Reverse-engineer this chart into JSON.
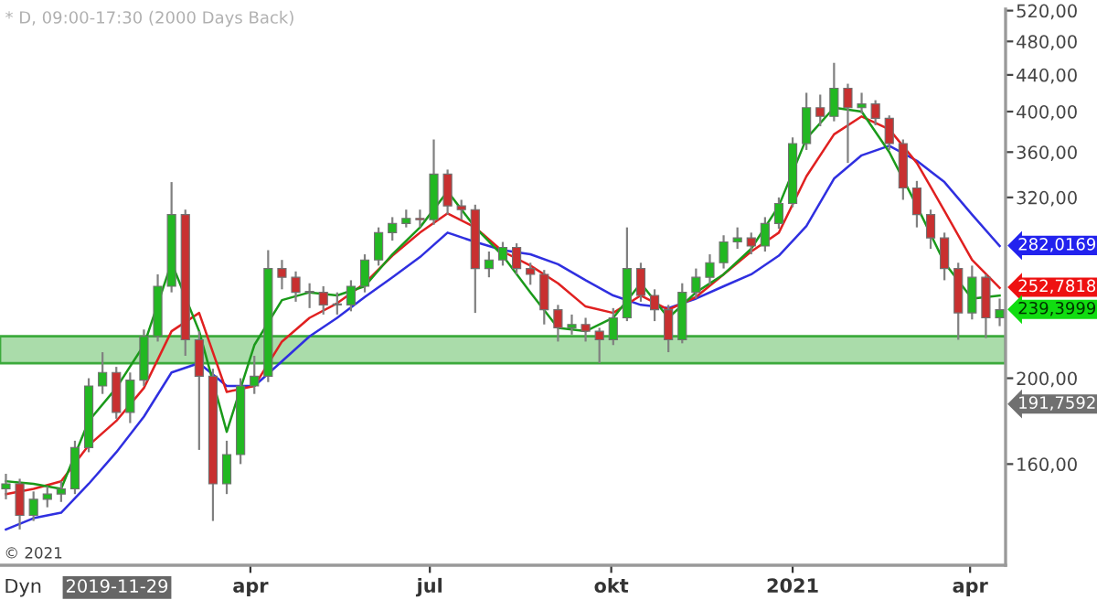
{
  "chart_data": {
    "type": "candlestick",
    "title": "* D, 09:00-17:30 (2000 Days Back)",
    "x": [
      "2019-11-29",
      "2019-12-06",
      "2019-12-13",
      "2019-12-20",
      "2019-12-27",
      "2020-01-03",
      "2020-01-10",
      "2020-01-17",
      "2020-01-24",
      "2020-01-31",
      "2020-02-07",
      "2020-02-14",
      "2020-02-21",
      "2020-02-28",
      "2020-03-06",
      "2020-03-13",
      "2020-03-20",
      "2020-03-27",
      "2020-04-03",
      "2020-04-10",
      "2020-04-17",
      "2020-04-24",
      "2020-05-01",
      "2020-05-08",
      "2020-05-15",
      "2020-05-22",
      "2020-05-29",
      "2020-06-05",
      "2020-06-12",
      "2020-06-19",
      "2020-06-26",
      "2020-07-03",
      "2020-07-10",
      "2020-07-17",
      "2020-07-24",
      "2020-07-31",
      "2020-08-07",
      "2020-08-14",
      "2020-08-21",
      "2020-08-28",
      "2020-09-04",
      "2020-09-11",
      "2020-09-18",
      "2020-09-25",
      "2020-10-02",
      "2020-10-09",
      "2020-10-16",
      "2020-10-23",
      "2020-10-30",
      "2020-11-06",
      "2020-11-13",
      "2020-11-20",
      "2020-11-27",
      "2020-12-04",
      "2020-12-11",
      "2020-12-18",
      "2020-12-25",
      "2021-01-01",
      "2021-01-08",
      "2021-01-15",
      "2021-01-22",
      "2021-01-29",
      "2021-02-05",
      "2021-02-12",
      "2021-02-19",
      "2021-02-26",
      "2021-03-05",
      "2021-03-12",
      "2021-03-19",
      "2021-03-26",
      "2021-04-02",
      "2021-04-09",
      "2021-04-16"
    ],
    "ohlc": [
      [
        150,
        156,
        146,
        152
      ],
      [
        152,
        154,
        135,
        140
      ],
      [
        140,
        149,
        138,
        146
      ],
      [
        146,
        151,
        143,
        148
      ],
      [
        148,
        153,
        145,
        150
      ],
      [
        150,
        170,
        148,
        167
      ],
      [
        167,
        200,
        165,
        196
      ],
      [
        196,
        214,
        192,
        203
      ],
      [
        203,
        206,
        180,
        183
      ],
      [
        183,
        203,
        178,
        199
      ],
      [
        199,
        227,
        196,
        223
      ],
      [
        223,
        262,
        220,
        254
      ],
      [
        254,
        333,
        250,
        306
      ],
      [
        306,
        310,
        212,
        221
      ],
      [
        221,
        226,
        166,
        201
      ],
      [
        201,
        205,
        138,
        152
      ],
      [
        152,
        170,
        148,
        164
      ],
      [
        164,
        200,
        160,
        196
      ],
      [
        196,
        212,
        192,
        201
      ],
      [
        201,
        279,
        198,
        266
      ],
      [
        266,
        272,
        252,
        260
      ],
      [
        260,
        264,
        244,
        250
      ],
      [
        250,
        256,
        240,
        250
      ],
      [
        250,
        254,
        236,
        242
      ],
      [
        242,
        250,
        236,
        242
      ],
      [
        242,
        258,
        238,
        254
      ],
      [
        254,
        276,
        250,
        272
      ],
      [
        272,
        296,
        268,
        292
      ],
      [
        292,
        304,
        286,
        299
      ],
      [
        299,
        310,
        296,
        303
      ],
      [
        303,
        310,
        296,
        302
      ],
      [
        302,
        372,
        298,
        340
      ],
      [
        340,
        344,
        306,
        313
      ],
      [
        313,
        318,
        302,
        310
      ],
      [
        310,
        314,
        237,
        266
      ],
      [
        266,
        278,
        260,
        272
      ],
      [
        272,
        285,
        268,
        281
      ],
      [
        281,
        284,
        262,
        266
      ],
      [
        266,
        270,
        255,
        262
      ],
      [
        262,
        265,
        230,
        239
      ],
      [
        239,
        242,
        220,
        228
      ],
      [
        228,
        236,
        224,
        230
      ],
      [
        230,
        234,
        220,
        226
      ],
      [
        226,
        228,
        208,
        221
      ],
      [
        221,
        240,
        218,
        234
      ],
      [
        234,
        296,
        232,
        266
      ],
      [
        266,
        270,
        244,
        248
      ],
      [
        248,
        252,
        232,
        239
      ],
      [
        239,
        242,
        214,
        221
      ],
      [
        221,
        256,
        219,
        250
      ],
      [
        250,
        266,
        246,
        260
      ],
      [
        260,
        276,
        255,
        270
      ],
      [
        270,
        290,
        266,
        285
      ],
      [
        285,
        296,
        280,
        288
      ],
      [
        288,
        292,
        276,
        282
      ],
      [
        282,
        304,
        278,
        299
      ],
      [
        299,
        320,
        295,
        315
      ],
      [
        315,
        374,
        312,
        368
      ],
      [
        368,
        420,
        362,
        404
      ],
      [
        404,
        418,
        385,
        395
      ],
      [
        395,
        454,
        390,
        425
      ],
      [
        425,
        430,
        350,
        404
      ],
      [
        404,
        420,
        398,
        408
      ],
      [
        408,
        412,
        386,
        393
      ],
      [
        393,
        396,
        362,
        368
      ],
      [
        368,
        372,
        318,
        328
      ],
      [
        328,
        334,
        296,
        306
      ],
      [
        306,
        310,
        280,
        288
      ],
      [
        288,
        292,
        258,
        266
      ],
      [
        266,
        270,
        221,
        237
      ],
      [
        237,
        268,
        233,
        260
      ],
      [
        260,
        262,
        222,
        234
      ],
      [
        234,
        246,
        229,
        239
      ]
    ],
    "series": [
      {
        "type": "line",
        "color": "#2f2fe0",
        "x": [
          "2019-11-29",
          "2019-12-13",
          "2019-12-27",
          "2020-01-10",
          "2020-01-24",
          "2020-02-07",
          "2020-02-21",
          "2020-03-06",
          "2020-03-20",
          "2020-04-03",
          "2020-04-17",
          "2020-05-01",
          "2020-05-15",
          "2020-05-29",
          "2020-06-12",
          "2020-06-26",
          "2020-07-10",
          "2020-07-24",
          "2020-08-07",
          "2020-08-21",
          "2020-09-04",
          "2020-09-18",
          "2020-10-02",
          "2020-10-16",
          "2020-10-30",
          "2020-11-13",
          "2020-11-27",
          "2020-12-11",
          "2020-12-25",
          "2021-01-08",
          "2021-01-22",
          "2021-02-05",
          "2021-02-19",
          "2021-03-05",
          "2021-03-19",
          "2021-04-02",
          "2021-04-16"
        ],
        "values": [
          135,
          139,
          141,
          152,
          165,
          181,
          203,
          208,
          196,
          196,
          209,
          223,
          234,
          247,
          260,
          274,
          292,
          285,
          279,
          276,
          269,
          258,
          248,
          242,
          240,
          246,
          254,
          262,
          275,
          297,
          336,
          357,
          366,
          352,
          333,
          306,
          282
        ]
      },
      {
        "type": "line",
        "color": "#e02020",
        "x": [
          "2019-11-29",
          "2019-12-13",
          "2019-12-27",
          "2020-01-10",
          "2020-01-24",
          "2020-02-07",
          "2020-02-21",
          "2020-03-06",
          "2020-03-20",
          "2020-04-03",
          "2020-04-17",
          "2020-05-01",
          "2020-05-15",
          "2020-05-29",
          "2020-06-12",
          "2020-06-26",
          "2020-07-10",
          "2020-07-24",
          "2020-08-07",
          "2020-08-21",
          "2020-09-04",
          "2020-09-18",
          "2020-10-02",
          "2020-10-16",
          "2020-10-30",
          "2020-11-13",
          "2020-11-27",
          "2020-12-11",
          "2020-12-25",
          "2021-01-08",
          "2021-01-22",
          "2021-02-05",
          "2021-02-19",
          "2021-03-05",
          "2021-03-19",
          "2021-04-02",
          "2021-04-16"
        ],
        "values": [
          148,
          150,
          153,
          168,
          179,
          195,
          226,
          237,
          193,
          196,
          220,
          234,
          243,
          256,
          275,
          292,
          307,
          296,
          278,
          268,
          256,
          241,
          237,
          248,
          239,
          247,
          262,
          278,
          292,
          338,
          377,
          395,
          382,
          350,
          309,
          272,
          253
        ]
      },
      {
        "type": "line",
        "color": "#1a9a1a",
        "x": [
          "2019-11-29",
          "2019-12-13",
          "2019-12-27",
          "2020-01-10",
          "2020-01-24",
          "2020-02-07",
          "2020-02-21",
          "2020-03-06",
          "2020-03-20",
          "2020-04-03",
          "2020-04-17",
          "2020-05-01",
          "2020-05-15",
          "2020-05-29",
          "2020-06-12",
          "2020-06-26",
          "2020-07-10",
          "2020-07-24",
          "2020-08-07",
          "2020-08-21",
          "2020-09-04",
          "2020-09-18",
          "2020-10-02",
          "2020-10-16",
          "2020-10-30",
          "2020-11-13",
          "2020-11-27",
          "2020-12-11",
          "2020-12-25",
          "2021-01-08",
          "2021-01-22",
          "2021-02-05",
          "2021-02-19",
          "2021-03-05",
          "2021-03-19",
          "2021-04-02",
          "2021-04-16"
        ],
        "values": [
          153,
          152,
          150,
          179,
          195,
          218,
          270,
          226,
          174,
          218,
          245,
          250,
          248,
          254,
          276,
          296,
          325,
          296,
          275,
          250,
          228,
          226,
          234,
          256,
          234,
          250,
          262,
          280,
          313,
          373,
          404,
          400,
          360,
          313,
          270,
          246,
          248
        ]
      }
    ],
    "log": "y",
    "xlim": [
      "2019-11-26",
      "2021-04-19"
    ],
    "xticks": [
      {
        "value": "2020-04-01",
        "label": "apr"
      },
      {
        "value": "2020-07-01",
        "label": "jul"
      },
      {
        "value": "2020-10-01",
        "label": "okt"
      },
      {
        "value": "2021-01-01",
        "label": "2021"
      },
      {
        "value": "2021-04-01",
        "label": "apr"
      }
    ],
    "ylim": [
      123,
      522
    ],
    "yticks": [
      {
        "value": 160,
        "label": "160,00"
      },
      {
        "value": 200,
        "label": "200,00"
      },
      {
        "value": 320,
        "label": "320,00"
      },
      {
        "value": 360,
        "label": "360,00"
      },
      {
        "value": 400,
        "label": "400,00"
      },
      {
        "value": 440,
        "label": "440,00"
      },
      {
        "value": 480,
        "label": "480,00"
      },
      {
        "value": 520,
        "label": "520,00"
      }
    ],
    "bands": [
      {
        "axis": "y",
        "from": 208,
        "to": 223,
        "color": "#aadcaa"
      }
    ],
    "annotations": [
      "© 2021",
      "Dyn",
      "2019-11-29",
      "282,0169",
      "252,7818",
      "239,3999",
      "191,7592"
    ],
    "grid": false,
    "legend": false
  }
}
